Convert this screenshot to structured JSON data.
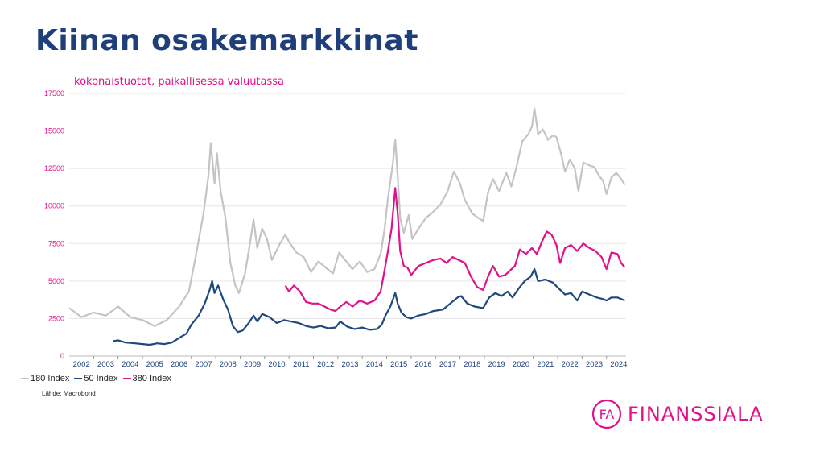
{
  "title": "Kiinan osakemarkkinat",
  "subtitle": "kokonaistuotot, paikallisessa valuutassa",
  "source": "Lähde: Macrobond",
  "logo": {
    "mark": "FA",
    "text": "FINANSSIALA"
  },
  "colors": {
    "title": "#1f3f7a",
    "accent": "#e0118a",
    "s180": "#c4c4c4",
    "s50": "#1f497d",
    "s380": "#e0118a"
  },
  "chart_data": {
    "type": "line",
    "title": "",
    "xlabel": "",
    "ylabel": "",
    "xlim": [
      2002.0,
      2024.8
    ],
    "ylim": [
      0,
      17500
    ],
    "yticks": [
      "0",
      "2500",
      "5000",
      "7500",
      "10000",
      "12500",
      "15000",
      "17500"
    ],
    "xticks": [
      "2002",
      "2003",
      "2004",
      "2005",
      "2006",
      "2007",
      "2008",
      "2009",
      "2010",
      "2011",
      "2012",
      "2013",
      "2014",
      "2015",
      "2016",
      "2017",
      "2018",
      "2019",
      "2020",
      "2021",
      "2022",
      "2023",
      "2024"
    ],
    "grid": true,
    "legend": "bottom-left",
    "series": [
      {
        "name": "180 Index",
        "color": "#c4c4c4",
        "points": [
          [
            2002.0,
            3200
          ],
          [
            2002.5,
            2600
          ],
          [
            2003.0,
            2900
          ],
          [
            2003.5,
            2700
          ],
          [
            2004.0,
            3300
          ],
          [
            2004.5,
            2600
          ],
          [
            2005.0,
            2400
          ],
          [
            2005.5,
            2000
          ],
          [
            2006.0,
            2400
          ],
          [
            2006.5,
            3300
          ],
          [
            2006.9,
            4300
          ],
          [
            2007.2,
            6800
          ],
          [
            2007.5,
            9500
          ],
          [
            2007.7,
            12000
          ],
          [
            2007.8,
            14200
          ],
          [
            2007.95,
            11500
          ],
          [
            2008.05,
            13500
          ],
          [
            2008.2,
            11000
          ],
          [
            2008.4,
            9200
          ],
          [
            2008.6,
            6200
          ],
          [
            2008.8,
            4700
          ],
          [
            2008.95,
            4200
          ],
          [
            2009.2,
            5500
          ],
          [
            2009.4,
            7500
          ],
          [
            2009.55,
            9100
          ],
          [
            2009.7,
            7200
          ],
          [
            2009.9,
            8500
          ],
          [
            2010.1,
            7800
          ],
          [
            2010.3,
            6400
          ],
          [
            2010.6,
            7400
          ],
          [
            2010.85,
            8100
          ],
          [
            2011.0,
            7600
          ],
          [
            2011.3,
            6900
          ],
          [
            2011.6,
            6600
          ],
          [
            2011.9,
            5600
          ],
          [
            2012.2,
            6300
          ],
          [
            2012.5,
            5900
          ],
          [
            2012.8,
            5500
          ],
          [
            2013.05,
            6900
          ],
          [
            2013.3,
            6400
          ],
          [
            2013.6,
            5800
          ],
          [
            2013.9,
            6300
          ],
          [
            2014.2,
            5600
          ],
          [
            2014.5,
            5800
          ],
          [
            2014.75,
            6800
          ],
          [
            2014.9,
            8300
          ],
          [
            2015.05,
            10500
          ],
          [
            2015.25,
            12800
          ],
          [
            2015.35,
            14400
          ],
          [
            2015.45,
            12000
          ],
          [
            2015.55,
            9200
          ],
          [
            2015.7,
            8200
          ],
          [
            2015.9,
            9400
          ],
          [
            2016.05,
            7800
          ],
          [
            2016.3,
            8500
          ],
          [
            2016.6,
            9200
          ],
          [
            2016.9,
            9600
          ],
          [
            2017.2,
            10100
          ],
          [
            2017.5,
            11000
          ],
          [
            2017.75,
            12300
          ],
          [
            2018.0,
            11500
          ],
          [
            2018.2,
            10400
          ],
          [
            2018.5,
            9500
          ],
          [
            2018.75,
            9200
          ],
          [
            2018.95,
            9000
          ],
          [
            2019.15,
            10900
          ],
          [
            2019.35,
            11800
          ],
          [
            2019.6,
            11000
          ],
          [
            2019.9,
            12200
          ],
          [
            2020.1,
            11300
          ],
          [
            2020.3,
            12500
          ],
          [
            2020.55,
            14300
          ],
          [
            2020.8,
            14800
          ],
          [
            2020.95,
            15300
          ],
          [
            2021.05,
            16500
          ],
          [
            2021.2,
            14800
          ],
          [
            2021.4,
            15100
          ],
          [
            2021.6,
            14400
          ],
          [
            2021.8,
            14700
          ],
          [
            2021.95,
            14600
          ],
          [
            2022.15,
            13400
          ],
          [
            2022.3,
            12300
          ],
          [
            2022.5,
            13100
          ],
          [
            2022.7,
            12500
          ],
          [
            2022.85,
            11000
          ],
          [
            2023.05,
            12900
          ],
          [
            2023.3,
            12700
          ],
          [
            2023.5,
            12600
          ],
          [
            2023.7,
            12000
          ],
          [
            2023.85,
            11700
          ],
          [
            2024.0,
            10800
          ],
          [
            2024.2,
            11900
          ],
          [
            2024.4,
            12200
          ],
          [
            2024.6,
            11800
          ],
          [
            2024.75,
            11400
          ]
        ]
      },
      {
        "name": "50 Index",
        "color": "#1f497d",
        "points": [
          [
            2003.8,
            1000
          ],
          [
            2004.0,
            1050
          ],
          [
            2004.3,
            900
          ],
          [
            2004.7,
            850
          ],
          [
            2005.0,
            800
          ],
          [
            2005.3,
            750
          ],
          [
            2005.6,
            850
          ],
          [
            2005.9,
            800
          ],
          [
            2006.2,
            900
          ],
          [
            2006.5,
            1200
          ],
          [
            2006.8,
            1500
          ],
          [
            2007.0,
            2100
          ],
          [
            2007.3,
            2700
          ],
          [
            2007.55,
            3500
          ],
          [
            2007.75,
            4400
          ],
          [
            2007.85,
            5000
          ],
          [
            2007.95,
            4200
          ],
          [
            2008.1,
            4700
          ],
          [
            2008.3,
            3800
          ],
          [
            2008.5,
            3100
          ],
          [
            2008.7,
            2000
          ],
          [
            2008.9,
            1600
          ],
          [
            2009.1,
            1700
          ],
          [
            2009.35,
            2200
          ],
          [
            2009.55,
            2700
          ],
          [
            2009.7,
            2300
          ],
          [
            2009.9,
            2800
          ],
          [
            2010.2,
            2600
          ],
          [
            2010.5,
            2200
          ],
          [
            2010.8,
            2400
          ],
          [
            2011.1,
            2300
          ],
          [
            2011.4,
            2200
          ],
          [
            2011.7,
            2000
          ],
          [
            2012.0,
            1900
          ],
          [
            2012.3,
            2000
          ],
          [
            2012.6,
            1850
          ],
          [
            2012.9,
            1900
          ],
          [
            2013.1,
            2300
          ],
          [
            2013.4,
            1950
          ],
          [
            2013.7,
            1800
          ],
          [
            2014.0,
            1900
          ],
          [
            2014.3,
            1750
          ],
          [
            2014.6,
            1800
          ],
          [
            2014.8,
            2100
          ],
          [
            2014.95,
            2700
          ],
          [
            2015.15,
            3300
          ],
          [
            2015.35,
            4200
          ],
          [
            2015.45,
            3500
          ],
          [
            2015.6,
            2900
          ],
          [
            2015.8,
            2600
          ],
          [
            2016.0,
            2500
          ],
          [
            2016.3,
            2700
          ],
          [
            2016.6,
            2800
          ],
          [
            2016.9,
            3000
          ],
          [
            2017.3,
            3100
          ],
          [
            2017.6,
            3500
          ],
          [
            2017.9,
            3900
          ],
          [
            2018.05,
            4000
          ],
          [
            2018.3,
            3500
          ],
          [
            2018.6,
            3300
          ],
          [
            2018.95,
            3200
          ],
          [
            2019.2,
            3900
          ],
          [
            2019.45,
            4200
          ],
          [
            2019.7,
            4000
          ],
          [
            2019.95,
            4300
          ],
          [
            2020.15,
            3900
          ],
          [
            2020.4,
            4500
          ],
          [
            2020.65,
            5000
          ],
          [
            2020.9,
            5300
          ],
          [
            2021.05,
            5800
          ],
          [
            2021.2,
            5000
          ],
          [
            2021.5,
            5100
          ],
          [
            2021.8,
            4900
          ],
          [
            2022.05,
            4500
          ],
          [
            2022.3,
            4100
          ],
          [
            2022.55,
            4200
          ],
          [
            2022.8,
            3700
          ],
          [
            2023.0,
            4300
          ],
          [
            2023.3,
            4100
          ],
          [
            2023.6,
            3900
          ],
          [
            2023.85,
            3800
          ],
          [
            2024.0,
            3700
          ],
          [
            2024.2,
            3900
          ],
          [
            2024.45,
            3900
          ],
          [
            2024.75,
            3700
          ]
        ]
      },
      {
        "name": "380 Index",
        "color": "#e0118a",
        "points": [
          [
            2010.85,
            4700
          ],
          [
            2011.0,
            4300
          ],
          [
            2011.2,
            4700
          ],
          [
            2011.45,
            4300
          ],
          [
            2011.7,
            3600
          ],
          [
            2011.95,
            3500
          ],
          [
            2012.2,
            3500
          ],
          [
            2012.45,
            3300
          ],
          [
            2012.7,
            3100
          ],
          [
            2012.9,
            3000
          ],
          [
            2013.1,
            3300
          ],
          [
            2013.35,
            3600
          ],
          [
            2013.6,
            3300
          ],
          [
            2013.9,
            3700
          ],
          [
            2014.2,
            3500
          ],
          [
            2014.5,
            3700
          ],
          [
            2014.75,
            4300
          ],
          [
            2014.9,
            5600
          ],
          [
            2015.05,
            7000
          ],
          [
            2015.2,
            8500
          ],
          [
            2015.35,
            11200
          ],
          [
            2015.45,
            9500
          ],
          [
            2015.55,
            7000
          ],
          [
            2015.7,
            6000
          ],
          [
            2015.85,
            5900
          ],
          [
            2016.0,
            5400
          ],
          [
            2016.3,
            6000
          ],
          [
            2016.6,
            6200
          ],
          [
            2016.9,
            6400
          ],
          [
            2017.2,
            6500
          ],
          [
            2017.45,
            6200
          ],
          [
            2017.7,
            6600
          ],
          [
            2017.95,
            6400
          ],
          [
            2018.2,
            6200
          ],
          [
            2018.45,
            5300
          ],
          [
            2018.7,
            4600
          ],
          [
            2018.95,
            4400
          ],
          [
            2019.15,
            5300
          ],
          [
            2019.35,
            6000
          ],
          [
            2019.6,
            5300
          ],
          [
            2019.85,
            5400
          ],
          [
            2020.05,
            5700
          ],
          [
            2020.25,
            6000
          ],
          [
            2020.45,
            7100
          ],
          [
            2020.7,
            6800
          ],
          [
            2020.95,
            7200
          ],
          [
            2021.15,
            6800
          ],
          [
            2021.35,
            7600
          ],
          [
            2021.55,
            8300
          ],
          [
            2021.75,
            8100
          ],
          [
            2021.95,
            7400
          ],
          [
            2022.1,
            6200
          ],
          [
            2022.3,
            7200
          ],
          [
            2022.55,
            7400
          ],
          [
            2022.8,
            7000
          ],
          [
            2023.05,
            7500
          ],
          [
            2023.3,
            7200
          ],
          [
            2023.55,
            7000
          ],
          [
            2023.8,
            6600
          ],
          [
            2024.0,
            5800
          ],
          [
            2024.2,
            6900
          ],
          [
            2024.45,
            6800
          ],
          [
            2024.6,
            6200
          ],
          [
            2024.75,
            5900
          ]
        ]
      }
    ]
  }
}
